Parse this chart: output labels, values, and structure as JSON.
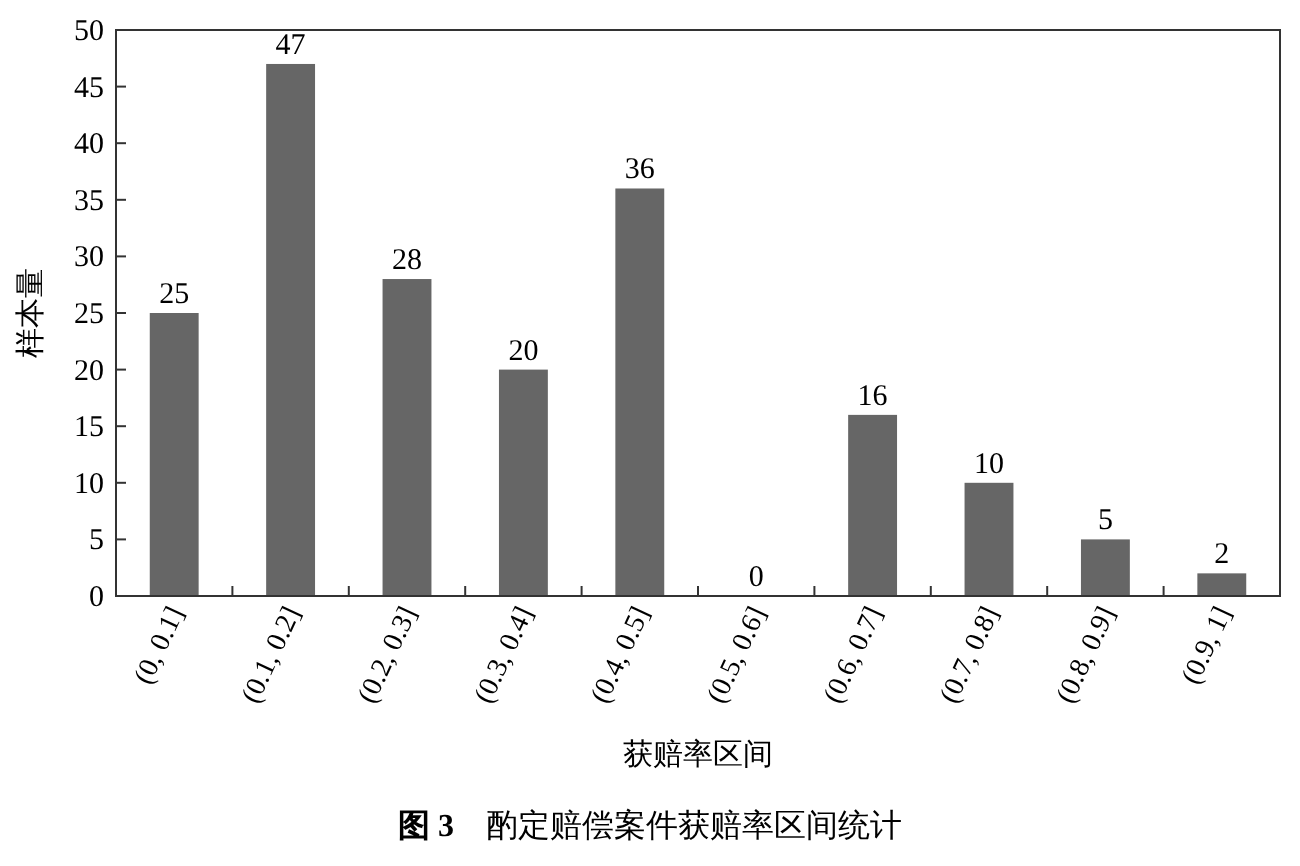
{
  "chart_data": {
    "type": "bar",
    "title": "**图 3**　酌定赔偿案件获赔率区间统计",
    "xlabel": "获赔率区间",
    "ylabel": "样本量",
    "categories": [
      "(0, 0.1]",
      "(0.1, 0.2]",
      "(0.2, 0.3]",
      "(0.3, 0.4]",
      "(0.4, 0.5]",
      "(0.5, 0.6]",
      "(0.6, 0.7]",
      "(0.7, 0.8]",
      "(0.8, 0.9]",
      "(0.9, 1]"
    ],
    "values": [
      25,
      47,
      28,
      20,
      36,
      0,
      16,
      10,
      5,
      2
    ],
    "color": "#666666",
    "ylim": [
      0,
      50
    ],
    "yticks": [
      0,
      5,
      10,
      15,
      20,
      25,
      30,
      35,
      40,
      45,
      50
    ],
    "data_labels": true
  }
}
